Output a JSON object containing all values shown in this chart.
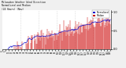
{
  "title_line1": "Milwaukee Weather Wind Direction",
  "title_line2": "Normalized and Median",
  "title_line3": "(24 Hours) (New)",
  "bg_color": "#f0f0f0",
  "plot_bg_color": "#ffffff",
  "grid_color": "#aaaaaa",
  "bar_color": "#cc0000",
  "median_color": "#0000cc",
  "ylim": [
    0,
    1.05
  ],
  "yticks": [
    0.0,
    0.5,
    1.0
  ],
  "legend_labels": [
    "Normalized",
    "Median"
  ],
  "legend_colors": [
    "#0000cc",
    "#cc0000"
  ],
  "n_points": 200,
  "seed": 42,
  "figsize": [
    1.6,
    0.87
  ],
  "dpi": 100
}
